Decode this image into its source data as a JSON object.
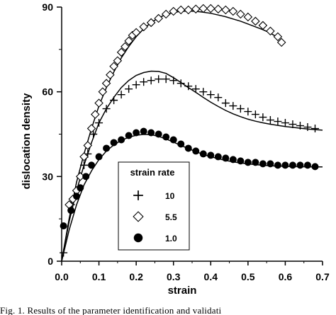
{
  "chart_data": {
    "type": "scatter",
    "xlabel": "strain",
    "ylabel": "dislocation density",
    "xlim": [
      0,
      0.7
    ],
    "ylim": [
      0,
      90
    ],
    "xticks": [
      "0.0",
      "0.1",
      "0.2",
      "0.3",
      "0.4",
      "0.5",
      "0.6",
      "0.7"
    ],
    "yticks": [
      "0",
      "30",
      "60",
      "90"
    ],
    "legend": {
      "title": "strain rate",
      "placement": "lower-center",
      "entries": [
        {
          "label": "10",
          "marker": "plus"
        },
        {
          "label": "5.5",
          "marker": "diamond"
        },
        {
          "label": "1.0",
          "marker": "circle"
        }
      ]
    },
    "series": [
      {
        "name": "10",
        "marker": "plus",
        "points": [
          [
            0.005,
            3
          ],
          [
            0.025,
            20
          ],
          [
            0.04,
            25
          ],
          [
            0.05,
            30
          ],
          [
            0.06,
            34
          ],
          [
            0.07,
            38
          ],
          [
            0.085,
            45
          ],
          [
            0.1,
            49
          ],
          [
            0.12,
            54
          ],
          [
            0.14,
            57
          ],
          [
            0.16,
            59
          ],
          [
            0.18,
            61
          ],
          [
            0.2,
            62.5
          ],
          [
            0.22,
            63.5
          ],
          [
            0.24,
            64
          ],
          [
            0.26,
            64.5
          ],
          [
            0.28,
            64.5
          ],
          [
            0.3,
            64
          ],
          [
            0.32,
            63
          ],
          [
            0.34,
            62
          ],
          [
            0.36,
            61
          ],
          [
            0.38,
            60
          ],
          [
            0.4,
            59
          ],
          [
            0.42,
            58
          ],
          [
            0.44,
            56
          ],
          [
            0.46,
            55
          ],
          [
            0.48,
            54
          ],
          [
            0.5,
            53
          ],
          [
            0.52,
            52
          ],
          [
            0.54,
            51
          ],
          [
            0.56,
            50
          ],
          [
            0.58,
            49.5
          ],
          [
            0.6,
            49
          ],
          [
            0.62,
            48.5
          ],
          [
            0.64,
            48
          ],
          [
            0.66,
            47.5
          ],
          [
            0.68,
            47
          ]
        ],
        "fit": [
          [
            0,
            0
          ],
          [
            0.02,
            14
          ],
          [
            0.04,
            25
          ],
          [
            0.06,
            34
          ],
          [
            0.08,
            42
          ],
          [
            0.1,
            49
          ],
          [
            0.12,
            54
          ],
          [
            0.14,
            58
          ],
          [
            0.16,
            61.5
          ],
          [
            0.18,
            64
          ],
          [
            0.2,
            65.8
          ],
          [
            0.22,
            66.8
          ],
          [
            0.24,
            67.3
          ],
          [
            0.26,
            67.2
          ],
          [
            0.28,
            66.5
          ],
          [
            0.3,
            65
          ],
          [
            0.32,
            63.3
          ],
          [
            0.34,
            61.5
          ],
          [
            0.36,
            59.8
          ],
          [
            0.38,
            58
          ],
          [
            0.4,
            56.3
          ],
          [
            0.42,
            54.8
          ],
          [
            0.44,
            53.4
          ],
          [
            0.46,
            52.2
          ],
          [
            0.48,
            51.2
          ],
          [
            0.5,
            50.3
          ],
          [
            0.52,
            49.6
          ],
          [
            0.54,
            49
          ],
          [
            0.56,
            48.5
          ],
          [
            0.58,
            48.1
          ],
          [
            0.6,
            47.7
          ],
          [
            0.62,
            47.4
          ],
          [
            0.64,
            47.1
          ],
          [
            0.66,
            46.8
          ],
          [
            0.68,
            46.6
          ],
          [
            0.7,
            46.4
          ]
        ]
      },
      {
        "name": "5.5",
        "marker": "diamond",
        "points": [
          [
            0.02,
            20
          ],
          [
            0.03,
            22
          ],
          [
            0.04,
            25
          ],
          [
            0.05,
            30
          ],
          [
            0.06,
            37
          ],
          [
            0.07,
            41
          ],
          [
            0.08,
            47
          ],
          [
            0.09,
            52
          ],
          [
            0.1,
            56
          ],
          [
            0.11,
            60
          ],
          [
            0.12,
            63
          ],
          [
            0.13,
            66
          ],
          [
            0.14,
            69
          ],
          [
            0.15,
            71
          ],
          [
            0.16,
            74
          ],
          [
            0.17,
            76
          ],
          [
            0.18,
            78
          ],
          [
            0.19,
            80
          ],
          [
            0.2,
            81
          ],
          [
            0.22,
            83
          ],
          [
            0.24,
            84.5
          ],
          [
            0.26,
            86
          ],
          [
            0.28,
            87.5
          ],
          [
            0.3,
            88.5
          ],
          [
            0.32,
            89
          ],
          [
            0.34,
            89
          ],
          [
            0.36,
            89.3
          ],
          [
            0.38,
            89.5
          ],
          [
            0.4,
            89.5
          ],
          [
            0.42,
            89.3
          ],
          [
            0.44,
            89
          ],
          [
            0.46,
            88.5
          ],
          [
            0.48,
            87.5
          ],
          [
            0.5,
            86.5
          ],
          [
            0.52,
            85
          ],
          [
            0.54,
            83.5
          ],
          [
            0.56,
            81.5
          ],
          [
            0.58,
            79.5
          ],
          [
            0.59,
            77.5
          ]
        ],
        "fit": [
          [
            0,
            0
          ],
          [
            0.02,
            15
          ],
          [
            0.04,
            28
          ],
          [
            0.06,
            38
          ],
          [
            0.08,
            47
          ],
          [
            0.1,
            55
          ],
          [
            0.12,
            61.5
          ],
          [
            0.14,
            67
          ],
          [
            0.16,
            72
          ],
          [
            0.18,
            76
          ],
          [
            0.2,
            79.5
          ],
          [
            0.22,
            82.3
          ],
          [
            0.24,
            84.5
          ],
          [
            0.26,
            86.2
          ],
          [
            0.28,
            87.4
          ],
          [
            0.3,
            88.1
          ],
          [
            0.32,
            88.5
          ],
          [
            0.34,
            88.6
          ],
          [
            0.36,
            88.5
          ],
          [
            0.38,
            88.2
          ],
          [
            0.4,
            87.8
          ],
          [
            0.42,
            87.2
          ],
          [
            0.44,
            86.6
          ],
          [
            0.46,
            85.8
          ],
          [
            0.48,
            85
          ],
          [
            0.5,
            84
          ],
          [
            0.52,
            83
          ],
          [
            0.54,
            82
          ],
          [
            0.56,
            80.8
          ],
          [
            0.58,
            79.2
          ]
        ]
      },
      {
        "name": "1.0",
        "marker": "circle",
        "points": [
          [
            0.005,
            12.5
          ],
          [
            0.025,
            18
          ],
          [
            0.04,
            23
          ],
          [
            0.05,
            26
          ],
          [
            0.065,
            30
          ],
          [
            0.08,
            34
          ],
          [
            0.1,
            37
          ],
          [
            0.12,
            40
          ],
          [
            0.14,
            42
          ],
          [
            0.16,
            43
          ],
          [
            0.18,
            44.5
          ],
          [
            0.2,
            45.5
          ],
          [
            0.22,
            46
          ],
          [
            0.24,
            45.5
          ],
          [
            0.26,
            45
          ],
          [
            0.28,
            44
          ],
          [
            0.3,
            43
          ],
          [
            0.32,
            41.5
          ],
          [
            0.34,
            40
          ],
          [
            0.36,
            39
          ],
          [
            0.38,
            38
          ],
          [
            0.4,
            37.5
          ],
          [
            0.42,
            37
          ],
          [
            0.44,
            36.5
          ],
          [
            0.46,
            36
          ],
          [
            0.48,
            35.5
          ],
          [
            0.5,
            35
          ],
          [
            0.52,
            35
          ],
          [
            0.54,
            34.5
          ],
          [
            0.56,
            34.5
          ],
          [
            0.58,
            34
          ],
          [
            0.6,
            34
          ],
          [
            0.62,
            34
          ],
          [
            0.64,
            34
          ],
          [
            0.66,
            34
          ],
          [
            0.68,
            33.5
          ]
        ],
        "fit": [
          [
            0,
            0
          ],
          [
            0.02,
            11
          ],
          [
            0.04,
            20
          ],
          [
            0.06,
            27
          ],
          [
            0.08,
            32
          ],
          [
            0.1,
            36
          ],
          [
            0.12,
            39
          ],
          [
            0.14,
            41.2
          ],
          [
            0.16,
            42.8
          ],
          [
            0.18,
            43.9
          ],
          [
            0.2,
            44.6
          ],
          [
            0.22,
            44.9
          ],
          [
            0.24,
            44.8
          ],
          [
            0.26,
            44.2
          ],
          [
            0.28,
            43.3
          ],
          [
            0.3,
            42.2
          ],
          [
            0.32,
            41
          ],
          [
            0.34,
            39.9
          ],
          [
            0.36,
            38.8
          ],
          [
            0.38,
            37.8
          ],
          [
            0.4,
            37
          ],
          [
            0.42,
            36.3
          ],
          [
            0.44,
            35.7
          ],
          [
            0.46,
            35.2
          ],
          [
            0.48,
            34.8
          ],
          [
            0.5,
            34.5
          ],
          [
            0.52,
            34.2
          ],
          [
            0.54,
            34
          ],
          [
            0.56,
            33.8
          ],
          [
            0.58,
            33.7
          ],
          [
            0.6,
            33.6
          ],
          [
            0.62,
            33.5
          ],
          [
            0.64,
            33.5
          ],
          [
            0.66,
            33.4
          ],
          [
            0.68,
            33.4
          ],
          [
            0.7,
            33.4
          ]
        ]
      }
    ]
  },
  "caption": "Fig. 1.  Results of the parameter identification and validati"
}
